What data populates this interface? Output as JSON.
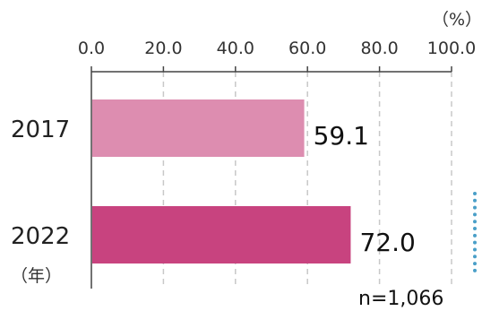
{
  "chart_data": {
    "type": "bar",
    "orientation": "horizontal",
    "categories": [
      "2017",
      "2022"
    ],
    "values": [
      59.1,
      72.0
    ],
    "value_labels": [
      "59.1",
      "72.0"
    ],
    "xlim": [
      0,
      100
    ],
    "x_ticks": [
      0,
      20,
      40,
      60,
      80,
      100
    ],
    "x_tick_labels": [
      "0.0",
      "20.0",
      "40.0",
      "60.0",
      "80.0",
      "100.0"
    ],
    "unit_label": "（%）",
    "category_axis_unit": "（年）",
    "note": "n=1,066",
    "grid": true,
    "bar_colors": [
      "#dd8db0",
      "#c8437f"
    ]
  }
}
